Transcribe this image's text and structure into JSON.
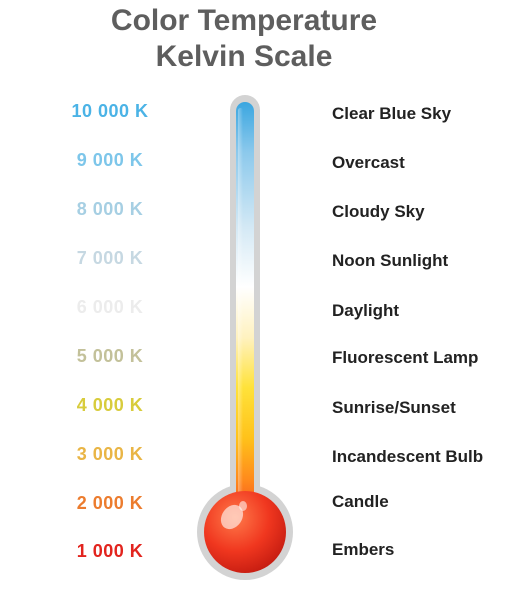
{
  "title": {
    "line1": "Color Temperature",
    "line2": "Kelvin Scale"
  },
  "scale": [
    {
      "kelvin": "10 000 K",
      "label": "Clear Blue Sky",
      "color": "#4bb3e6"
    },
    {
      "kelvin": "9 000 K",
      "label": "Overcast",
      "color": "#7dc6ea"
    },
    {
      "kelvin": "8 000 K",
      "label": "Cloudy Sky",
      "color": "#a6cfe3"
    },
    {
      "kelvin": "7 000 K",
      "label": "Noon Sunlight",
      "color": "#c6d8e2"
    },
    {
      "kelvin": "6 000 K",
      "label": "Daylight",
      "color": "#ececec"
    },
    {
      "kelvin": "5 000 K",
      "label": "Fluorescent Lamp",
      "color": "#c3c19a"
    },
    {
      "kelvin": "4 000 K",
      "label": "Sunrise/Sunset",
      "color": "#d8cc3c"
    },
    {
      "kelvin": "3 000 K",
      "label": "Incandescent Bulb",
      "color": "#e9b545"
    },
    {
      "kelvin": "2 000 K",
      "label": "Candle",
      "color": "#ec7c2e"
    },
    {
      "kelvin": "1 000 K",
      "label": "Embers",
      "color": "#e2241e"
    }
  ]
}
